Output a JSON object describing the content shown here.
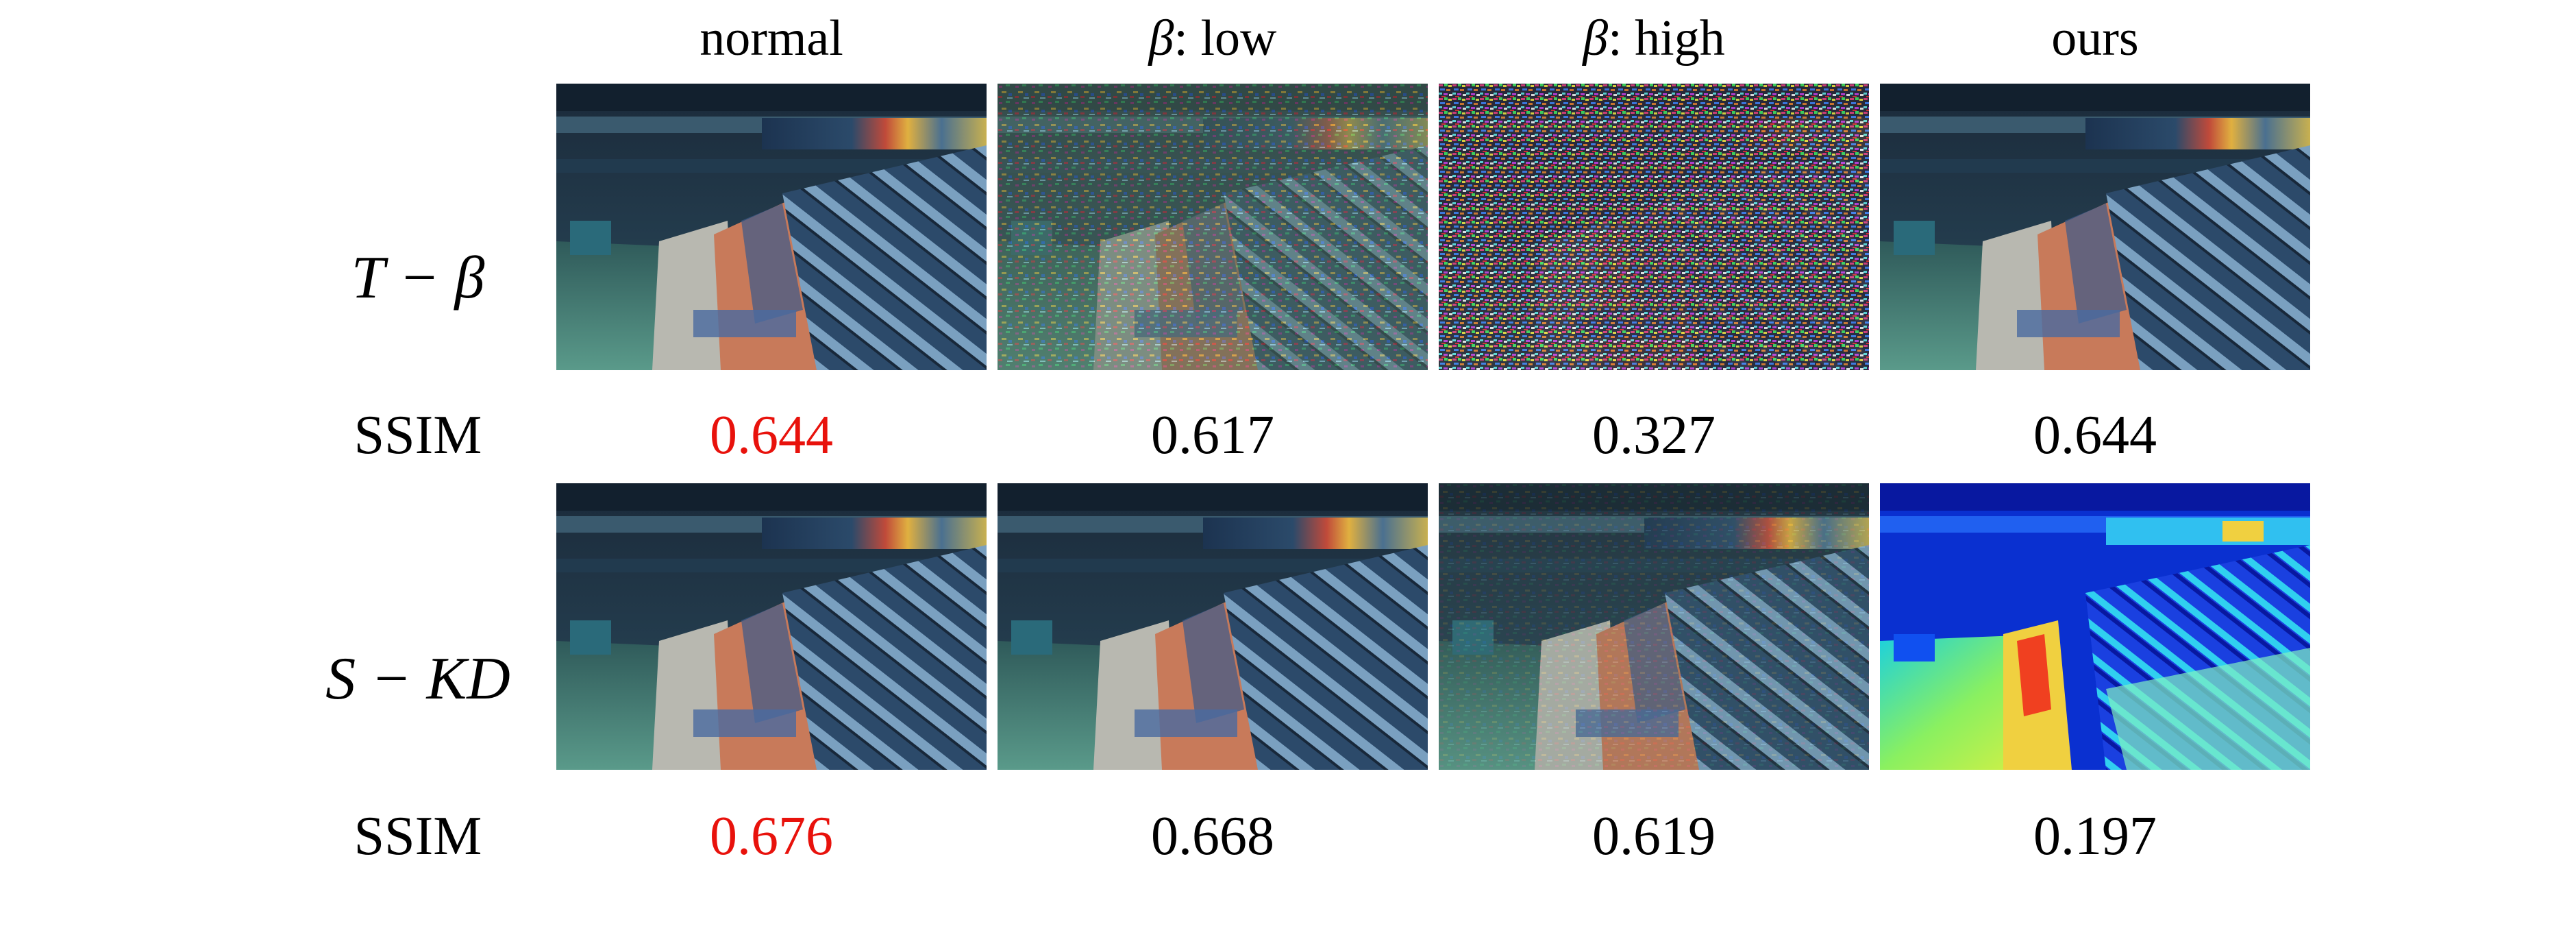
{
  "columns": {
    "normal": "normal",
    "beta_low_symbol": "β",
    "beta_low_text": ": low",
    "beta_high_symbol": "β",
    "beta_high_text": ": high",
    "ours": "ours"
  },
  "rows": [
    {
      "label": "T − β",
      "ssim_label": "SSIM",
      "ssim": [
        "0.644",
        "0.617",
        "0.327",
        "0.644"
      ],
      "panels": [
        "photo",
        "photo-light-noise",
        "photo-heavy-noise",
        "photo"
      ]
    },
    {
      "label": "S − KD",
      "ssim_label": "SSIM",
      "ssim": [
        "0.676",
        "0.668",
        "0.619",
        "0.197"
      ],
      "panels": [
        "photo",
        "photo",
        "photo",
        "jet-heatmap"
      ]
    }
  ],
  "colors": {
    "best_ssim": "#e8120c"
  }
}
